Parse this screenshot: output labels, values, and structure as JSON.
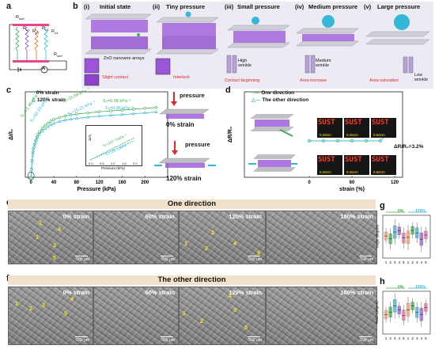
{
  "panels": {
    "a": "a",
    "b": "b",
    "c": "c",
    "d": "d",
    "e": "e",
    "f": "f",
    "g": "g",
    "h": "h"
  },
  "circuit": {
    "r_top": "R",
    "r_top_sub": "surf",
    "r1": "R",
    "r1_sub": "c1",
    "r2": "R",
    "r2_sub": "c2",
    "r3": "R",
    "r3_sub": "c3",
    "r4": "R",
    "r4_sub": "c4",
    "r_bot": "R",
    "r_bot_sub": "surf",
    "meter": "A"
  },
  "panel_b": {
    "stages": [
      {
        "num": "(i)",
        "title": "Initial state"
      },
      {
        "num": "(ii)",
        "title": "Tiny pressure"
      },
      {
        "num": "(iii)",
        "title": "Small pressure"
      },
      {
        "num": "(iv)",
        "title": "Medium pressure"
      },
      {
        "num": "(v)",
        "title": "Large pressure"
      }
    ],
    "zno_label": "ZnO nanowire arrays",
    "slight_contact": "Slight contact",
    "interlock": "Interlock",
    "high_wrinkle": "High wrinkle",
    "contact_beginning": "Contact beginning",
    "medium_wrinkle": "Medium wrinkle",
    "area_increase": "Area increase",
    "area_saturation": "Area saturation",
    "low_wrinkle": "Low wrinkle"
  },
  "panel_c": {
    "legend": [
      "0% strain",
      "120% strain"
    ],
    "pressure_label": "pressure",
    "strain0_label": "0% strain",
    "strain120_label": "120% strain",
    "sensitivity_labels": [
      "S₁=71.46 kPa⁻¹",
      "S₂=16.59 kPa⁻¹",
      "S₃=0.98 kPa⁻¹",
      "S₁=60.93 kPa⁻¹",
      "S₂=15.21 kPa⁻¹",
      "S₃=0.96 kPa⁻¹"
    ],
    "inset_labels": [
      "S₁=187.71kPa⁻¹",
      "S₁=180.13kPa⁻¹"
    ],
    "inset_xlabel": "Pressure (kPa)",
    "inset_ylabel": "ΔI/I₀",
    "inset_xticks": [
      "0.0",
      "0.5",
      "1.0",
      "1.5",
      "2.0"
    ]
  },
  "panel_d": {
    "legend": [
      "One direction",
      "The other direction"
    ],
    "annotation": "ΔR/R₀=3.2%",
    "display_text": "SUST",
    "strain_readouts": [
      "0.28cm",
      "0.46cm",
      "0.62cm",
      "0.28cm",
      "0.45cm",
      "0.62cm"
    ]
  },
  "panel_e": {
    "banner": "One direction",
    "images": [
      "0% strain",
      "60% strain",
      "120% strain",
      "180% strain"
    ],
    "scale": "500 μm",
    "marks_0": [
      "1",
      "2",
      "3",
      "4",
      "5"
    ],
    "marks_120": [
      "1",
      "2",
      "3",
      "4",
      "5"
    ]
  },
  "panel_f": {
    "banner": "The other direction",
    "images": [
      "0% strain",
      "60% strain",
      "120% strain",
      "180% strain"
    ],
    "scale": "500 μm",
    "marks_0": [
      "1",
      "2",
      "3",
      "4",
      "5"
    ],
    "marks_120": [
      "1",
      "2",
      "3",
      "4",
      "5"
    ]
  },
  "panel_g": {
    "legend": [
      "0%",
      "120%"
    ],
    "ylabel": "Angle (degree)",
    "xticks": [
      "1",
      "2",
      "3",
      "4",
      "5",
      "1",
      "2",
      "3",
      "4",
      "5"
    ]
  },
  "panel_h": {
    "legend": [
      "0%",
      "120%"
    ],
    "ylabel": "Ratio (degree)",
    "xticks": [
      "1",
      "2",
      "3",
      "4",
      "5",
      "1",
      "2",
      "3",
      "4",
      "5"
    ]
  },
  "chart_data": [
    {
      "type": "line",
      "panel": "c",
      "xlabel": "Pressure (kPa)",
      "ylabel": "ΔI/I₀",
      "xlim": [
        -10,
        240
      ],
      "ylim": [
        0,
        600
      ],
      "x_ticks": [
        0,
        40,
        80,
        120,
        160,
        200
      ],
      "series": [
        {
          "name": "0% strain",
          "color": "#39b24a",
          "x": [
            0,
            1,
            2,
            3,
            4,
            6,
            8,
            10,
            12,
            15,
            20,
            25,
            30,
            35,
            40,
            50,
            60,
            70,
            80,
            100,
            120,
            140,
            160,
            180,
            200,
            220
          ],
          "y": [
            0,
            60,
            120,
            170,
            200,
            230,
            258,
            280,
            300,
            320,
            345,
            365,
            380,
            395,
            405,
            420,
            430,
            438,
            444,
            452,
            460,
            466,
            472,
            478,
            484,
            490
          ]
        },
        {
          "name": "120% strain",
          "color": "#35b8d8",
          "x": [
            0,
            1,
            2,
            3,
            4,
            6,
            8,
            10,
            12,
            15,
            20,
            25,
            30,
            35,
            40,
            50,
            60,
            70,
            80,
            100,
            120,
            140,
            160,
            180,
            200,
            220
          ],
          "y": [
            0,
            55,
            110,
            155,
            185,
            215,
            240,
            262,
            282,
            302,
            325,
            342,
            356,
            368,
            378,
            392,
            401,
            408,
            414,
            422,
            429,
            435,
            440,
            446,
            452,
            458
          ]
        }
      ]
    },
    {
      "type": "line",
      "panel": "d",
      "xlabel": "strain (%)",
      "ylabel": "ΔR/R₀",
      "x_ticks": [
        0,
        60,
        120
      ],
      "series": [
        {
          "name": "One direction",
          "color": "#39b24a",
          "x": [
            0,
            20,
            40,
            60,
            80,
            100,
            120
          ],
          "y": [
            0,
            0,
            0,
            0,
            0,
            0,
            3.2
          ]
        },
        {
          "name": "The other direction",
          "color": "#35b8d8",
          "x": [
            0,
            20,
            40,
            60,
            80,
            100,
            120
          ],
          "y": [
            0,
            0,
            0,
            0,
            0,
            0,
            3.2
          ]
        }
      ]
    }
  ]
}
